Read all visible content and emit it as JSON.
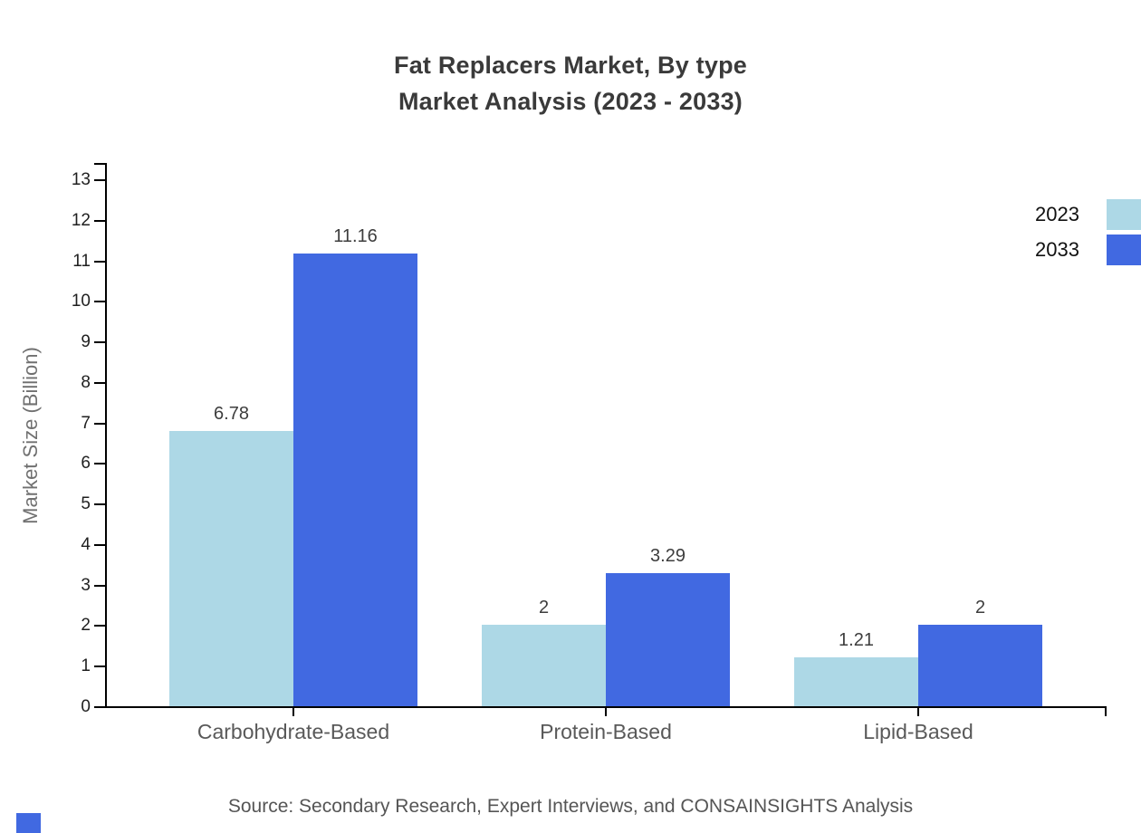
{
  "title": {
    "line1": "Fat Replacers Market, By type",
    "line2": "Market Analysis (2023 - 2033)"
  },
  "chart_data": {
    "type": "bar",
    "title": "Fat Replacers Market, By type Market Analysis (2023 - 2033)",
    "categories": [
      "Carbohydrate-Based",
      "Protein-Based",
      "Lipid-Based"
    ],
    "series": [
      {
        "name": "2023",
        "color": "#ADD8E6",
        "values": [
          6.78,
          2,
          1.21
        ],
        "labels": [
          "6.78",
          "2",
          "1.21"
        ]
      },
      {
        "name": "2033",
        "color": "#4169E1",
        "values": [
          11.16,
          3.29,
          2
        ],
        "labels": [
          "11.16",
          "3.29",
          "2"
        ]
      }
    ],
    "xlabel": "",
    "ylabel": "Market Size (Billion)",
    "ylim": [
      0,
      13
    ],
    "ytick_interval": 1,
    "grid": false,
    "legend_position": "top-right",
    "axis_color": "#000000"
  },
  "source": "Source: Secondary Research, Expert Interviews, and CONSAINSIGHTS Analysis",
  "watermark_color": "#4169E1"
}
